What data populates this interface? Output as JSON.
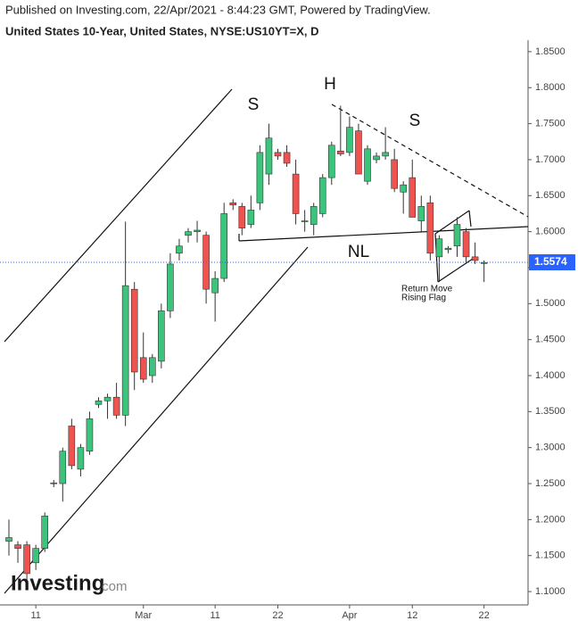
{
  "header": {
    "published": "Published on Investing.com, 22/Apr/2021 - 8:44:23 GMT, Powered by TradingView.",
    "instrument": "United States 10-Year, United States, NYSE:US10YT=X, D"
  },
  "logo": {
    "brand": "Investing",
    "suffix": ".com"
  },
  "chart_data": {
    "type": "candlestick",
    "categories": [
      null,
      null,
      null,
      "11",
      null,
      null,
      null,
      null,
      null,
      null,
      null,
      null,
      null,
      null,
      null,
      "Mar",
      null,
      null,
      null,
      null,
      null,
      null,
      null,
      "11",
      null,
      null,
      null,
      null,
      null,
      null,
      "22",
      null,
      null,
      null,
      null,
      null,
      null,
      null,
      "Apr",
      null,
      null,
      null,
      null,
      null,
      null,
      "12",
      null,
      null,
      null,
      null,
      null,
      null,
      null,
      "22"
    ],
    "series": [
      {
        "open": [
          1.17,
          1.165,
          1.165,
          1.14,
          1.16,
          1.25,
          1.25,
          1.33,
          1.27,
          1.295,
          1.36,
          1.365,
          1.37,
          1.345,
          1.52,
          1.425,
          1.4,
          1.42,
          1.49,
          1.57,
          1.595,
          1.6,
          1.595,
          1.515,
          1.535,
          1.64,
          1.635,
          1.61,
          1.64,
          1.68,
          1.71,
          1.71,
          1.68,
          1.615,
          1.61,
          1.625,
          1.675,
          1.712,
          1.71,
          1.74,
          1.67,
          1.7,
          1.705,
          1.7,
          1.655,
          1.675,
          1.615,
          1.64,
          1.565,
          1.575,
          1.58,
          1.6,
          1.565,
          1.556
        ],
        "high": [
          1.2,
          1.17,
          1.17,
          1.165,
          1.21,
          1.255,
          1.3,
          1.34,
          1.305,
          1.35,
          1.37,
          1.375,
          1.39,
          1.614,
          1.53,
          1.46,
          1.43,
          1.5,
          1.57,
          1.59,
          1.605,
          1.615,
          1.6,
          1.545,
          1.64,
          1.645,
          1.64,
          1.65,
          1.72,
          1.75,
          1.715,
          1.72,
          1.7,
          1.63,
          1.64,
          1.68,
          1.725,
          1.775,
          1.76,
          1.75,
          1.72,
          1.71,
          1.745,
          1.715,
          1.67,
          1.7,
          1.65,
          1.65,
          1.595,
          1.58,
          1.62,
          1.605,
          1.585,
          1.56
        ],
        "low": [
          1.15,
          1.14,
          1.115,
          1.13,
          1.155,
          1.245,
          1.225,
          1.27,
          1.26,
          1.29,
          1.355,
          1.34,
          1.34,
          1.33,
          1.38,
          1.39,
          1.39,
          1.41,
          1.48,
          1.56,
          1.585,
          1.585,
          1.5,
          1.475,
          1.53,
          1.63,
          1.595,
          1.605,
          1.63,
          1.665,
          1.7,
          1.69,
          1.61,
          1.6,
          1.595,
          1.62,
          1.665,
          1.705,
          1.705,
          1.68,
          1.665,
          1.695,
          1.7,
          1.655,
          1.625,
          1.62,
          1.6,
          1.56,
          1.53,
          1.57,
          1.565,
          1.555,
          1.555,
          1.53
        ],
        "close": [
          1.175,
          1.16,
          1.125,
          1.16,
          1.205,
          1.251,
          1.295,
          1.275,
          1.3,
          1.34,
          1.365,
          1.37,
          1.345,
          1.525,
          1.405,
          1.395,
          1.425,
          1.49,
          1.555,
          1.58,
          1.6,
          1.602,
          1.52,
          1.535,
          1.625,
          1.637,
          1.605,
          1.63,
          1.71,
          1.73,
          1.705,
          1.695,
          1.625,
          1.615,
          1.635,
          1.675,
          1.72,
          1.708,
          1.745,
          1.68,
          1.715,
          1.705,
          1.71,
          1.66,
          1.665,
          1.62,
          1.635,
          1.57,
          1.59,
          1.577,
          1.61,
          1.565,
          1.56,
          1.557
        ]
      }
    ],
    "up_color": "#3cc47c",
    "down_color": "#ef5350",
    "ylim": [
      1.079,
      1.866
    ],
    "yticks": [
      {
        "value": 1.1,
        "label": "1.1000"
      },
      {
        "value": 1.15,
        "label": "1.1500"
      },
      {
        "value": 1.2,
        "label": "1.2000"
      },
      {
        "value": 1.25,
        "label": "1.2500"
      },
      {
        "value": 1.3,
        "label": "1.3000"
      },
      {
        "value": 1.35,
        "label": "1.3500"
      },
      {
        "value": 1.4,
        "label": "1.4000"
      },
      {
        "value": 1.45,
        "label": "1.4500"
      },
      {
        "value": 1.5,
        "label": "1.5000"
      },
      {
        "value": 1.55,
        "label": "1.5500"
      },
      {
        "value": 1.6,
        "label": "1.6000"
      },
      {
        "value": 1.65,
        "label": "1.6500"
      },
      {
        "value": 1.7,
        "label": "1.7000"
      },
      {
        "value": 1.75,
        "label": "1.7500"
      },
      {
        "value": 1.8,
        "label": "1.8000"
      },
      {
        "value": 1.85,
        "label": "1.8500"
      }
    ],
    "last_price": 1.5574,
    "last_color": "#2962ff",
    "annotations": [
      "S",
      "H",
      "S",
      "NL",
      "Return Move",
      "Rising Flag"
    ]
  }
}
